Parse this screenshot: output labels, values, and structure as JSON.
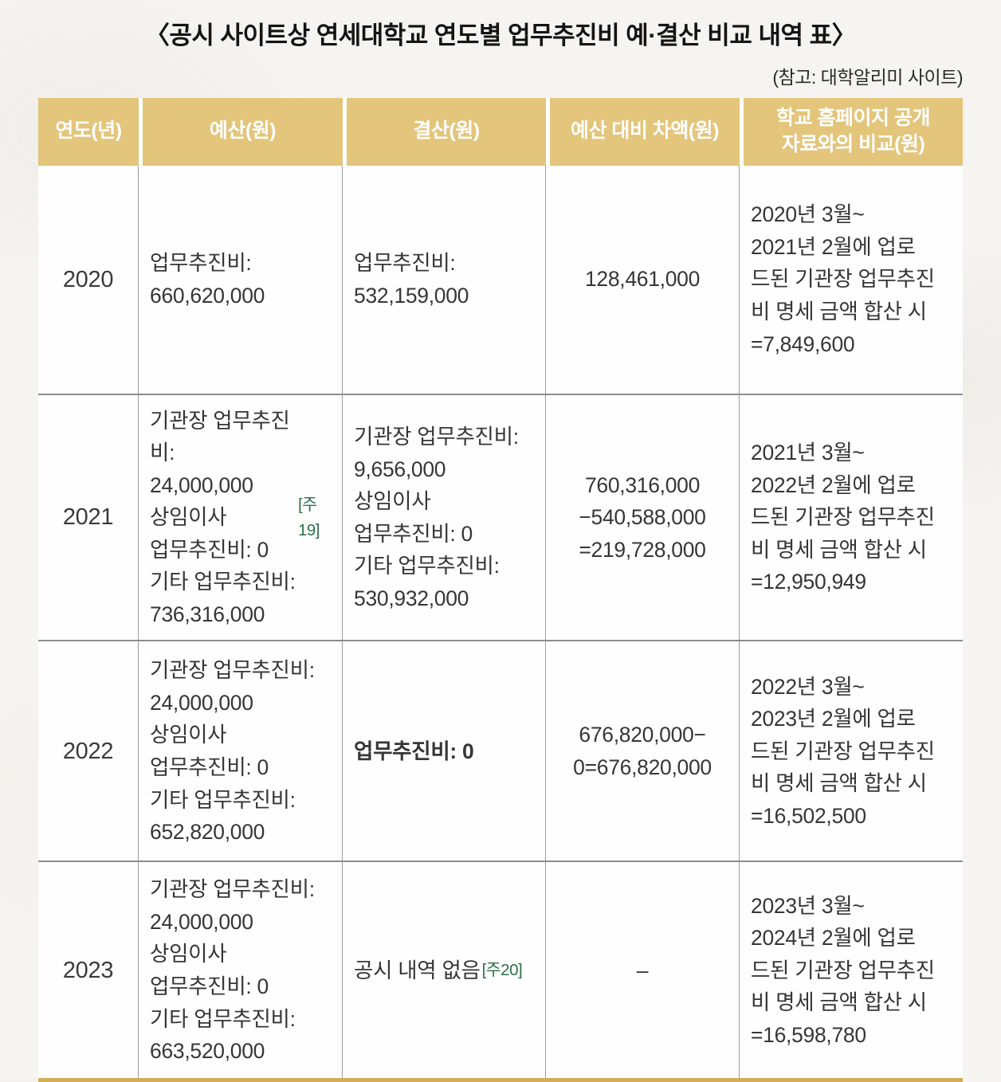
{
  "page": {
    "title": "〈공시 사이트상 연세대학교 연도별 업무추진비 예·결산 비교 내역 표〉",
    "source_note": "(참고: 대학알리미 사이트)"
  },
  "colors": {
    "header_gold": "#e3c57b",
    "bottom_border_gold": "#d1ad59",
    "footnote_green": "#2d6e4c",
    "row_border_gray": "#8d8d8d"
  },
  "table": {
    "headers": [
      "연도(년)",
      "예산(원)",
      "결산(원)",
      "예산 대비 차액(원)",
      "학교 홈페이지 공개\n자료와의 비교(원)"
    ],
    "rows": [
      {
        "year": "2020",
        "budget": {
          "text": "업무추진비:\n660,620,000",
          "note": ""
        },
        "settlement": {
          "text": "업무추진비:\n532,159,000",
          "note": "",
          "bold": false
        },
        "diff": "128,461,000",
        "comparison": "2020년 3월~\n2021년 2월에 업로\n드된 기관장 업무추진\n비 명세 금액 합산 시\n=7,849,600"
      },
      {
        "year": "2021",
        "budget": {
          "text": "기관장 업무추진비:\n24,000,000\n상임이사\n업무추진비: 0\n기타 업무추진비:\n736,316,000",
          "note": "[주19]"
        },
        "settlement": {
          "text": "기관장 업무추진비:\n9,656,000\n상임이사\n업무추진비: 0\n기타 업무추진비:\n530,932,000",
          "note": "",
          "bold": false
        },
        "diff": "760,316,000\n−540,588,000\n=219,728,000",
        "comparison": "2021년 3월~\n2022년 2월에 업로\n드된 기관장 업무추진\n비 명세 금액 합산 시\n=12,950,949"
      },
      {
        "year": "2022",
        "budget": {
          "text": "기관장 업무추진비:\n24,000,000\n상임이사\n업무추진비: 0\n기타 업무추진비:\n652,820,000",
          "note": ""
        },
        "settlement": {
          "text": "업무추진비: 0",
          "note": "",
          "bold": true
        },
        "diff": "676,820,000−\n0=676,820,000",
        "comparison": "2022년 3월~\n2023년 2월에 업로\n드된 기관장 업무추진\n비 명세 금액 합산 시\n=16,502,500"
      },
      {
        "year": "2023",
        "budget": {
          "text": "기관장 업무추진비:\n24,000,000\n상임이사\n업무추진비: 0\n기타 업무추진비:\n663,520,000",
          "note": ""
        },
        "settlement": {
          "text": "공시 내역 없음",
          "note": "[주20]",
          "bold": false
        },
        "diff": "–",
        "comparison": "2023년 3월~\n2024년 2월에 업로\n드된 기관장 업무추진\n비 명세 금액 합산 시\n=16,598,780"
      }
    ]
  }
}
